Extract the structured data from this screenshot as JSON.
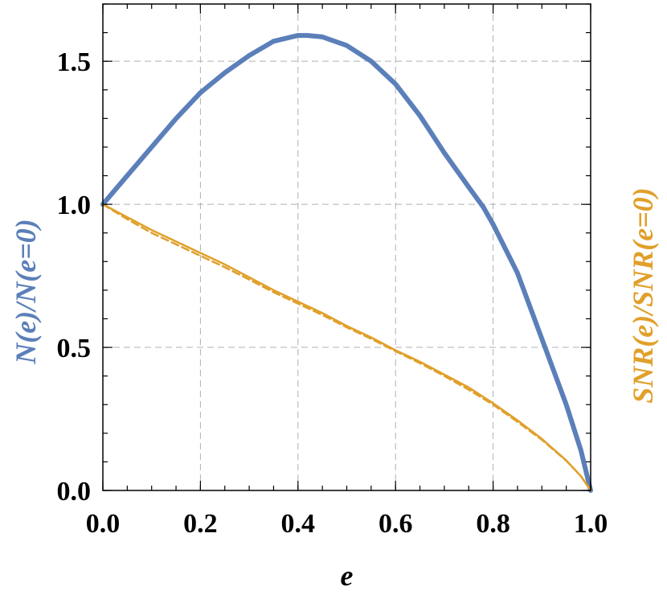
{
  "chart_data": {
    "type": "line",
    "xlabel": "e",
    "ylabel_left": "N(e)/N(e=0)",
    "ylabel_right": "SNR(e)/SNR(e=0)",
    "xlim": [
      0,
      1
    ],
    "ylim": [
      0,
      1.7
    ],
    "x_ticks": [
      "0.0",
      "0.2",
      "0.4",
      "0.6",
      "0.8",
      "1.0"
    ],
    "y_ticks": [
      "0.0",
      "0.5",
      "1.0",
      "1.5"
    ],
    "grid": true,
    "colors": {
      "blue": "#5b7fb9",
      "orange": "#e0a02a"
    },
    "series": [
      {
        "color": "#5b7fb9",
        "style": "solid",
        "x": [
          0.0,
          0.05,
          0.1,
          0.15,
          0.2,
          0.25,
          0.3,
          0.35,
          0.4,
          0.42,
          0.45,
          0.5,
          0.55,
          0.6,
          0.65,
          0.7,
          0.75,
          0.78,
          0.8,
          0.85,
          0.9,
          0.95,
          0.98,
          1.0
        ],
        "y": [
          1.0,
          1.1,
          1.2,
          1.3,
          1.39,
          1.46,
          1.52,
          1.57,
          1.59,
          1.59,
          1.585,
          1.555,
          1.5,
          1.42,
          1.31,
          1.18,
          1.06,
          0.99,
          0.93,
          0.76,
          0.53,
          0.3,
          0.14,
          0.0
        ]
      },
      {
        "color": "#e0a02a",
        "style": "solid",
        "x": [
          0.0,
          0.05,
          0.1,
          0.15,
          0.2,
          0.25,
          0.3,
          0.35,
          0.4,
          0.45,
          0.5,
          0.55,
          0.6,
          0.65,
          0.7,
          0.75,
          0.8,
          0.85,
          0.9,
          0.95,
          0.98,
          1.0
        ],
        "y": [
          1.0,
          0.955,
          0.91,
          0.87,
          0.83,
          0.79,
          0.745,
          0.7,
          0.66,
          0.62,
          0.575,
          0.535,
          0.49,
          0.45,
          0.405,
          0.36,
          0.305,
          0.245,
          0.18,
          0.105,
          0.05,
          0.0
        ]
      },
      {
        "color": "#e0a02a",
        "style": "dashed",
        "x": [
          0.0,
          0.05,
          0.1,
          0.15,
          0.2,
          0.25,
          0.3,
          0.35,
          0.4,
          0.45,
          0.5,
          0.55,
          0.6,
          0.65,
          0.7,
          0.75,
          0.8,
          0.85,
          0.9,
          0.95,
          0.98,
          1.0
        ],
        "y": [
          1.0,
          0.948,
          0.9,
          0.86,
          0.82,
          0.78,
          0.737,
          0.693,
          0.653,
          0.613,
          0.57,
          0.53,
          0.487,
          0.445,
          0.4,
          0.352,
          0.3,
          0.24,
          0.177,
          0.104,
          0.05,
          0.0
        ]
      }
    ]
  }
}
